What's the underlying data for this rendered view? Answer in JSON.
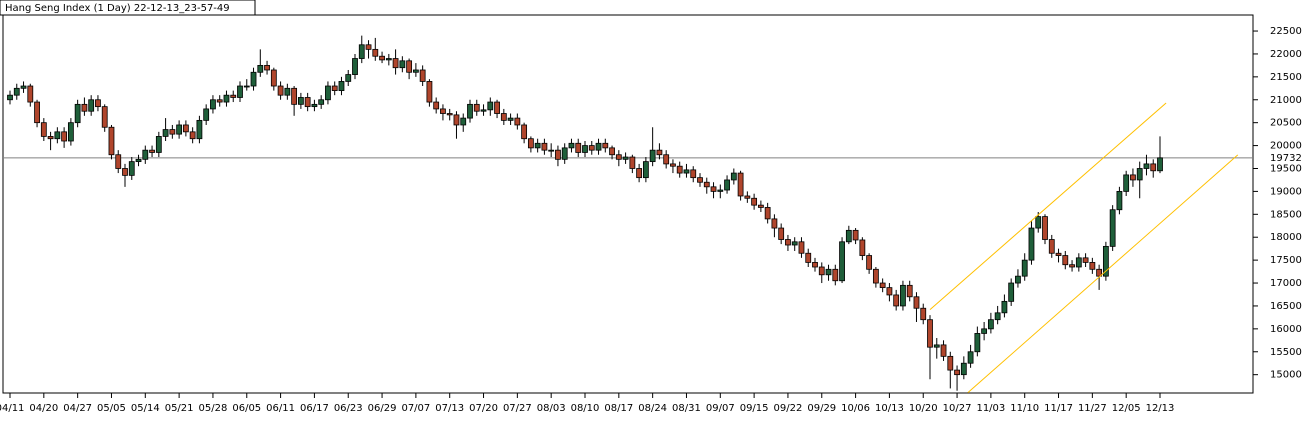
{
  "chart_data": {
    "type": "candlestick",
    "title": "Hang Seng Index (1 Day) 22-12-13_23-57-49",
    "categories": [
      "04/11",
      null,
      null,
      null,
      null,
      "04/20",
      null,
      null,
      null,
      null,
      "04/27",
      null,
      null,
      null,
      null,
      "05/05",
      null,
      null,
      null,
      null,
      "05/14",
      null,
      null,
      null,
      null,
      "05/21",
      null,
      null,
      null,
      null,
      "05/28",
      null,
      null,
      null,
      null,
      "06/05",
      null,
      null,
      null,
      null,
      "06/11",
      null,
      null,
      null,
      null,
      "06/17",
      null,
      null,
      null,
      null,
      "06/23",
      null,
      null,
      null,
      null,
      "06/29",
      null,
      null,
      null,
      null,
      "07/07",
      null,
      null,
      null,
      null,
      "07/13",
      null,
      null,
      null,
      null,
      "07/20",
      null,
      null,
      null,
      null,
      "07/27",
      null,
      null,
      null,
      null,
      "08/03",
      null,
      null,
      null,
      null,
      "08/10",
      null,
      null,
      null,
      null,
      "08/17",
      null,
      null,
      null,
      null,
      "08/24",
      null,
      null,
      null,
      null,
      "08/31",
      null,
      null,
      null,
      null,
      "09/07",
      null,
      null,
      null,
      null,
      "09/15",
      null,
      null,
      null,
      null,
      "09/22",
      null,
      null,
      null,
      null,
      "09/29",
      null,
      null,
      null,
      null,
      "10/06",
      null,
      null,
      null,
      null,
      "10/13",
      null,
      null,
      null,
      null,
      "10/20",
      null,
      null,
      null,
      null,
      "10/27",
      null,
      null,
      null,
      null,
      "11/03",
      null,
      null,
      null,
      null,
      "11/10",
      null,
      null,
      null,
      null,
      "11/17",
      null,
      null,
      null,
      null,
      "11/27",
      null,
      null,
      null,
      null,
      "12/05",
      null,
      null,
      null,
      null,
      "12/13"
    ],
    "open": [
      21000,
      21100,
      21250,
      21300,
      20950,
      20500,
      20200,
      20150,
      20300,
      20100,
      20500,
      20900,
      20750,
      21000,
      20850,
      20400,
      19800,
      19500,
      19350,
      19650,
      19700,
      19900,
      19850,
      20200,
      20350,
      20250,
      20450,
      20300,
      20150,
      20550,
      20800,
      21000,
      20950,
      21100,
      21050,
      21300,
      21300,
      21600,
      21750,
      21650,
      21300,
      21100,
      21250,
      20900,
      21050,
      20850,
      20900,
      21000,
      21300,
      21200,
      21400,
      21550,
      21900,
      22200,
      22100,
      21950,
      21870,
      21900,
      21700,
      21850,
      21600,
      21650,
      21400,
      20950,
      20800,
      20700,
      20670,
      20450,
      20600,
      20900,
      20750,
      20780,
      20950,
      20700,
      20550,
      20600,
      20450,
      20150,
      19950,
      20050,
      19900,
      19900,
      19700,
      19950,
      20050,
      19850,
      20000,
      19900,
      20050,
      19950,
      19800,
      19700,
      19750,
      19500,
      19300,
      19650,
      19900,
      19800,
      19600,
      19550,
      19400,
      19470,
      19300,
      19200,
      19100,
      19000,
      19030,
      19250,
      19400,
      18900,
      18850,
      18700,
      18650,
      18400,
      18200,
      17950,
      17830,
      17900,
      17650,
      17450,
      17350,
      17180,
      17300,
      17050,
      17900,
      18150,
      17940,
      17600,
      17300,
      17000,
      16900,
      16740,
      16500,
      16950,
      16700,
      16450,
      16200,
      15600,
      15650,
      15400,
      15100,
      15000,
      15250,
      15500,
      15900,
      16000,
      16200,
      16350,
      16600,
      17000,
      17150,
      17500,
      18200,
      18450,
      17950,
      17650,
      17600,
      17400,
      17350,
      17550,
      17450,
      17300,
      17150,
      17800,
      18600,
      19000,
      19360,
      19250,
      19500,
      19600,
      19450
    ],
    "high": [
      21200,
      21350,
      21400,
      21350,
      21000,
      20600,
      20300,
      20400,
      20400,
      20600,
      21000,
      21050,
      21100,
      21100,
      20900,
      20450,
      19900,
      19600,
      19750,
      19800,
      20000,
      20000,
      20300,
      20600,
      20450,
      20550,
      20550,
      20400,
      20650,
      20900,
      21100,
      21100,
      21200,
      21200,
      21400,
      21450,
      21700,
      22100,
      21850,
      21700,
      21400,
      21350,
      21300,
      21150,
      21150,
      21000,
      21100,
      21400,
      21400,
      21500,
      21650,
      22000,
      22400,
      22300,
      22350,
      22050,
      22000,
      22100,
      21950,
      21900,
      21800,
      21750,
      21450,
      21050,
      20900,
      20800,
      20750,
      20700,
      21000,
      21000,
      20900,
      21050,
      21000,
      20800,
      20700,
      20700,
      20500,
      20200,
      20150,
      20150,
      20050,
      20000,
      20050,
      20150,
      20150,
      20100,
      20100,
      20150,
      20150,
      20000,
      19900,
      19850,
      19800,
      19600,
      19750,
      20400,
      20050,
      19900,
      19700,
      19650,
      19600,
      19550,
      19400,
      19300,
      19200,
      19150,
      19350,
      19500,
      19450,
      19000,
      18950,
      18800,
      18750,
      18500,
      18300,
      18050,
      18000,
      18000,
      17750,
      17550,
      17450,
      17400,
      17400,
      18000,
      18250,
      18200,
      18000,
      17650,
      17350,
      17100,
      17000,
      16850,
      17050,
      17050,
      16800,
      16550,
      16300,
      15800,
      15750,
      15500,
      15200,
      15400,
      15650,
      16050,
      16150,
      16350,
      16500,
      16750,
      17100,
      17300,
      17650,
      18350,
      18550,
      18500,
      18050,
      17750,
      17700,
      17500,
      17650,
      17650,
      17550,
      17400,
      17900,
      18700,
      19100,
      19450,
      19500,
      19650,
      19800,
      19700,
      20200
    ],
    "low": [
      20900,
      21000,
      21150,
      20850,
      20400,
      20100,
      19900,
      20050,
      19950,
      20000,
      20400,
      20650,
      20650,
      20750,
      20300,
      19700,
      19400,
      19100,
      19250,
      19550,
      19600,
      19750,
      19750,
      20100,
      20150,
      20150,
      20200,
      20050,
      20050,
      20450,
      20700,
      20850,
      20850,
      20950,
      20950,
      21200,
      21200,
      21500,
      21550,
      21200,
      21000,
      21000,
      20650,
      20800,
      20750,
      20750,
      20800,
      20900,
      21100,
      21100,
      21300,
      21450,
      21800,
      21900,
      21850,
      21800,
      21750,
      21550,
      21600,
      21450,
      21500,
      21300,
      20850,
      20700,
      20550,
      20550,
      20150,
      20300,
      20500,
      20650,
      20650,
      20650,
      20600,
      20450,
      20450,
      20350,
      20050,
      19850,
      19850,
      19800,
      19750,
      19550,
      19600,
      19850,
      19750,
      19750,
      19800,
      19800,
      19850,
      19700,
      19550,
      19600,
      19400,
      19200,
      19200,
      19550,
      19700,
      19500,
      19400,
      19300,
      19300,
      19200,
      19100,
      18950,
      18850,
      18850,
      18950,
      19150,
      18800,
      18750,
      18600,
      18550,
      18300,
      18000,
      17850,
      17700,
      17700,
      17550,
      17350,
      17250,
      17000,
      17050,
      16950,
      17000,
      17850,
      17850,
      17500,
      17200,
      16900,
      16800,
      16600,
      16400,
      16400,
      16600,
      16150,
      16100,
      14900,
      15350,
      15300,
      14700,
      14650,
      14900,
      15150,
      15400,
      15750,
      15900,
      16100,
      16250,
      16500,
      16900,
      17050,
      17400,
      18100,
      17850,
      17550,
      17450,
      17300,
      17250,
      17250,
      17350,
      17200,
      16850,
      17050,
      17700,
      18500,
      18900,
      19100,
      18850,
      19350,
      19300,
      19400
    ],
    "close": [
      21100,
      21250,
      21300,
      20950,
      20500,
      20200,
      20150,
      20300,
      20100,
      20500,
      20900,
      20750,
      21000,
      20850,
      20400,
      19800,
      19500,
      19350,
      19650,
      19700,
      19900,
      19850,
      20200,
      20350,
      20250,
      20450,
      20300,
      20150,
      20550,
      20800,
      21000,
      20950,
      21100,
      21050,
      21300,
      21300,
      21600,
      21750,
      21650,
      21300,
      21100,
      21250,
      20900,
      21050,
      20850,
      20900,
      21000,
      21300,
      21200,
      21400,
      21550,
      21900,
      22200,
      22100,
      21950,
      21870,
      21900,
      21700,
      21850,
      21600,
      21650,
      21400,
      20950,
      20800,
      20700,
      20670,
      20450,
      20600,
      20900,
      20750,
      20780,
      20950,
      20700,
      20550,
      20600,
      20450,
      20150,
      19950,
      20050,
      19900,
      19900,
      19700,
      19950,
      20050,
      19850,
      20000,
      19900,
      20050,
      19950,
      19800,
      19700,
      19750,
      19500,
      19300,
      19650,
      19900,
      19800,
      19600,
      19550,
      19400,
      19470,
      19300,
      19200,
      19100,
      19000,
      19030,
      19250,
      19400,
      18900,
      18850,
      18700,
      18650,
      18400,
      18200,
      17950,
      17830,
      17900,
      17650,
      17450,
      17350,
      17180,
      17300,
      17050,
      17900,
      18150,
      17940,
      17600,
      17300,
      17000,
      16900,
      16740,
      16500,
      16950,
      16700,
      16450,
      16200,
      15600,
      15650,
      15400,
      15100,
      15000,
      15250,
      15500,
      15900,
      16000,
      16200,
      16350,
      16600,
      17000,
      17150,
      17500,
      18200,
      18450,
      17950,
      17650,
      17600,
      17400,
      17350,
      17550,
      17450,
      17300,
      17150,
      17800,
      18600,
      19000,
      19360,
      19250,
      19500,
      19600,
      19450,
      19732
    ],
    "up_color": "#1f5f3a",
    "down_color": "#b0452c",
    "ylim": [
      14600,
      22850
    ],
    "yticks": [
      15000,
      15500,
      16000,
      16500,
      17000,
      17500,
      18000,
      18500,
      19000,
      19500,
      20000,
      20500,
      21000,
      21500,
      22000,
      22500
    ],
    "current_price": 19732,
    "trend_lines": [
      {
        "x": [
          136,
          170.9
        ],
        "y": [
          16420,
          20930
        ],
        "color": "#ffc000"
      },
      {
        "x": [
          141.6,
          181.5
        ],
        "y": [
          14608,
          19797
        ],
        "color": "#ffc000"
      }
    ]
  }
}
